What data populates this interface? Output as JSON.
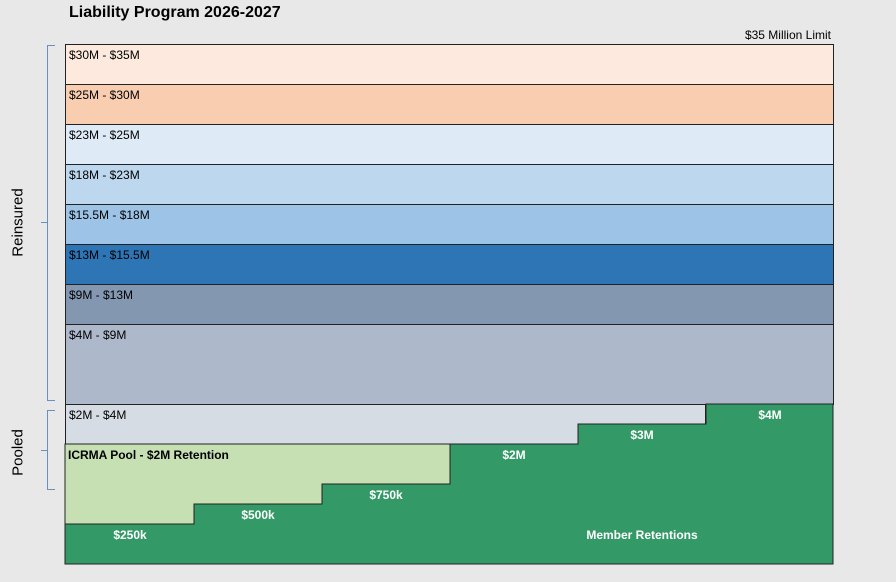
{
  "title": "Liability Program 2026-2027",
  "limit_label": "$35 Million Limit",
  "side_labels": {
    "reinsured": "Reinsured",
    "pooled": "Pooled"
  },
  "layers": [
    {
      "label": "$30M - $35M",
      "color": "#fde9dd"
    },
    {
      "label": "$25M - $30M",
      "color": "#f9cdb0"
    },
    {
      "label": "$23M - $25M",
      "color": "#deebf7"
    },
    {
      "label": "$18M - $23M",
      "color": "#bdd7ee"
    },
    {
      "label": "$15.5M - $18M",
      "color": "#9dc3e6"
    },
    {
      "label": "$13M - $15.5M",
      "color": "#2e75b6"
    },
    {
      "label": "$9M - $13M",
      "color": "#8497b0"
    },
    {
      "label": "$4M - $9M",
      "color": "#adb9ca"
    },
    {
      "label": "$2M - $4M",
      "color": "#d6dce4"
    }
  ],
  "pool": {
    "label": "ICRMA Pool -  $2M Retention",
    "color": "#c6e0b4"
  },
  "retentions": {
    "color": "#339966",
    "labels": [
      "$250k",
      "$500k",
      "$750k",
      "$2M",
      "$3M",
      "$4M"
    ],
    "footer": "Member Retentions"
  }
}
